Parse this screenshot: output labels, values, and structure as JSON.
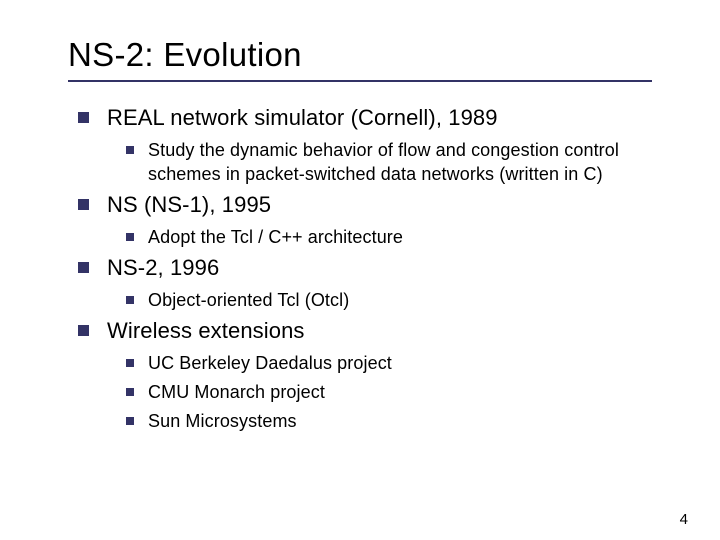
{
  "title": "NS-2: Evolution",
  "bullets": [
    {
      "text": "REAL network simulator (Cornell), 1989",
      "sub": [
        {
          "text": "Study the dynamic behavior of flow and congestion control schemes in packet-switched data networks (written in C)"
        }
      ]
    },
    {
      "text": "NS (NS-1), 1995",
      "sub": [
        {
          "text": "Adopt the Tcl / C++ architecture"
        }
      ]
    },
    {
      "text": "NS-2, 1996",
      "sub": [
        {
          "text": "Object-oriented Tcl (Otcl)"
        }
      ]
    },
    {
      "text": "Wireless extensions",
      "sub": [
        {
          "text": "UC Berkeley Daedalus project"
        },
        {
          "text": "CMU Monarch project"
        },
        {
          "text": "Sun Microsystems"
        }
      ]
    }
  ],
  "page_number": "4",
  "colors": {
    "bullet": "#333366",
    "underline": "#333366",
    "text": "#000000",
    "background": "#ffffff"
  },
  "typography": {
    "title_fontsize": 33,
    "l1_fontsize": 22,
    "l2_fontsize": 18,
    "pagenum_fontsize": 15,
    "font_family": "Verdana"
  }
}
